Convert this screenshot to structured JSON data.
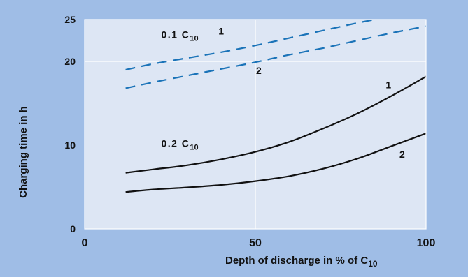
{
  "chart_data": {
    "type": "line",
    "xlabel": "Depth of discharge in % of C",
    "xlabel_subscript": "10",
    "ylabel": "Charging time in h",
    "xlim": [
      0,
      100
    ],
    "ylim": [
      0,
      25
    ],
    "x_ticks": [
      "0",
      "50",
      "100"
    ],
    "y_ticks": [
      "0",
      "10",
      "20",
      "25"
    ],
    "y_tick_values": [
      0,
      10,
      20,
      25
    ],
    "grid": "vertical line at 50, horizontal line at 20",
    "colors": {
      "background": "#9fbde6",
      "plot_area": "#dde6f4",
      "dashed_series": "#1a73b8",
      "solid_series": "#111111"
    },
    "group_labels": [
      {
        "main": "0.1 C",
        "subscript": "10",
        "at": [
          38,
          22.8
        ]
      },
      {
        "main": "0.2 C",
        "subscript": "10",
        "at": [
          38,
          9.8
        ]
      }
    ],
    "series": [
      {
        "name": "1",
        "group": "0.1 C10",
        "style": "dashed",
        "x": [
          12,
          20,
          30,
          40,
          50,
          60,
          70,
          80,
          90,
          100
        ],
        "y": [
          19.0,
          19.7,
          20.4,
          21.1,
          21.9,
          22.8,
          23.7,
          24.6,
          25.4,
          26.3
        ],
        "label_at": [
          40,
          23.2
        ]
      },
      {
        "name": "2",
        "group": "0.1 C10",
        "style": "dashed",
        "x": [
          12,
          20,
          30,
          40,
          50,
          60,
          70,
          80,
          90,
          100
        ],
        "y": [
          16.8,
          17.5,
          18.3,
          19.1,
          19.9,
          20.8,
          21.6,
          22.5,
          23.4,
          24.2
        ],
        "label_at": [
          51,
          18.5
        ]
      },
      {
        "name": "1",
        "group": "0.2 C10",
        "style": "solid",
        "x": [
          12,
          20,
          30,
          40,
          50,
          60,
          70,
          80,
          90,
          100
        ],
        "y": [
          6.7,
          7.1,
          7.6,
          8.3,
          9.2,
          10.4,
          12.0,
          13.8,
          15.9,
          18.2
        ],
        "label_at": [
          89,
          16.8
        ]
      },
      {
        "name": "2",
        "group": "0.2 C10",
        "style": "solid",
        "x": [
          12,
          20,
          30,
          40,
          50,
          60,
          70,
          80,
          90,
          100
        ],
        "y": [
          4.4,
          4.7,
          4.95,
          5.25,
          5.7,
          6.3,
          7.2,
          8.4,
          9.9,
          11.4
        ],
        "label_at": [
          93,
          8.5
        ]
      }
    ]
  }
}
